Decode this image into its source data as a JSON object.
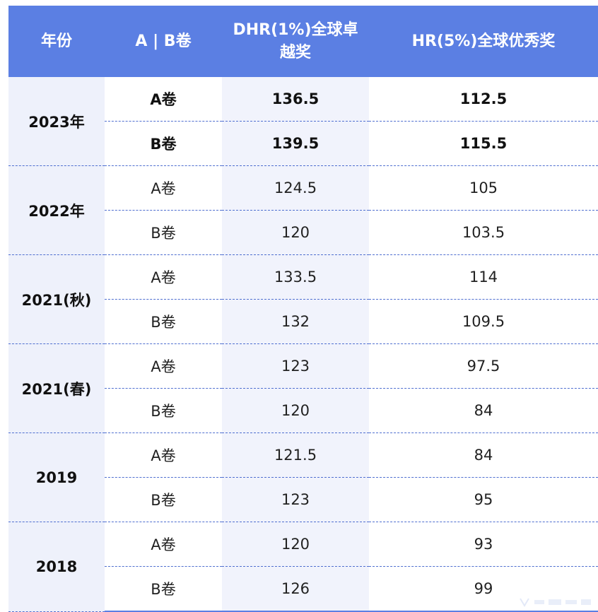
{
  "table": {
    "headers": {
      "year": "年份",
      "paper": "A | B卷",
      "dhr_line1": "DHR(1%)全球卓",
      "dhr_line2": "越奖",
      "hr": "HR(5%)全球优秀奖"
    },
    "groups": [
      {
        "year": "2023年",
        "bold": true,
        "rows": [
          {
            "paper": "A卷",
            "dhr": "136.5",
            "hr": "112.5"
          },
          {
            "paper": "B卷",
            "dhr": "139.5",
            "hr": "115.5"
          }
        ]
      },
      {
        "year": "2022年",
        "bold": false,
        "rows": [
          {
            "paper": "A卷",
            "dhr": "124.5",
            "hr": "105"
          },
          {
            "paper": "B卷",
            "dhr": "120",
            "hr": "103.5"
          }
        ]
      },
      {
        "year": "2021(秋)",
        "bold": false,
        "rows": [
          {
            "paper": "A卷",
            "dhr": "133.5",
            "hr": "114"
          },
          {
            "paper": "B卷",
            "dhr": "132",
            "hr": "109.5"
          }
        ]
      },
      {
        "year": "2021(春)",
        "bold": false,
        "rows": [
          {
            "paper": "A卷",
            "dhr": "123",
            "hr": "97.5"
          },
          {
            "paper": "B卷",
            "dhr": "120",
            "hr": "84"
          }
        ]
      },
      {
        "year": "2019",
        "bold": false,
        "rows": [
          {
            "paper": "A卷",
            "dhr": "121.5",
            "hr": "84"
          },
          {
            "paper": "B卷",
            "dhr": "123",
            "hr": "95"
          }
        ]
      },
      {
        "year": "2018",
        "bold": false,
        "rows": [
          {
            "paper": "A卷",
            "dhr": "120",
            "hr": "93"
          },
          {
            "paper": "B卷",
            "dhr": "126",
            "hr": "99"
          }
        ]
      }
    ]
  },
  "colors": {
    "header_bg": "#5b7fe3",
    "year_col_bg": "#eef1fb",
    "dhr_col_bg": "#f1f3fc",
    "divider": "#4f6fd0"
  }
}
